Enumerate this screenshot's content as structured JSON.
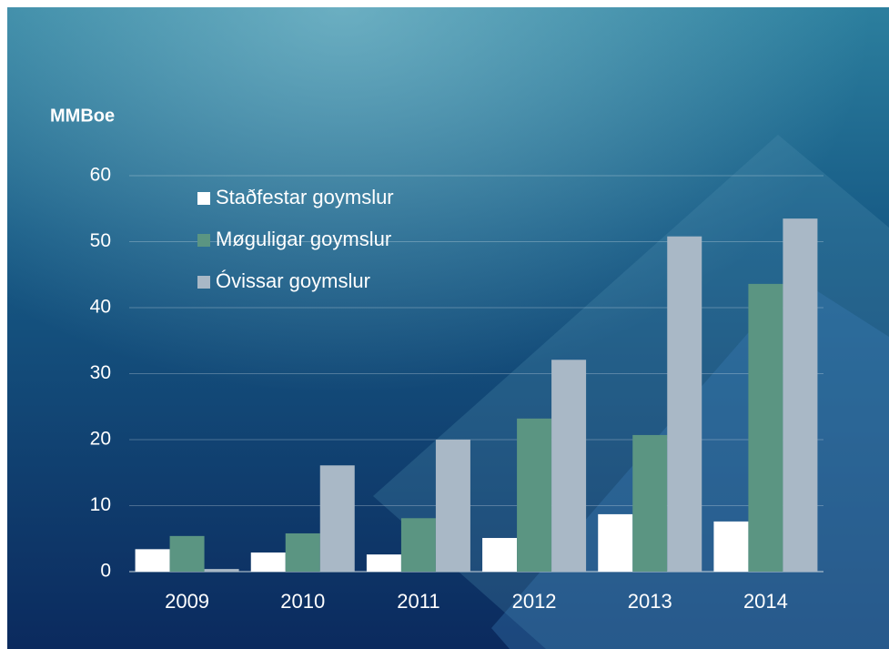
{
  "chart_data": {
    "type": "bar",
    "y_label": "MMBoe",
    "categories": [
      "2009",
      "2010",
      "2011",
      "2012",
      "2013",
      "2014"
    ],
    "series": [
      {
        "name": "Staðfestar goymslur",
        "color": "#ffffff",
        "values": [
          3.4,
          2.9,
          2.6,
          5.1,
          8.7,
          7.6
        ]
      },
      {
        "name": "Møguligar goymslur",
        "color": "#5b9582",
        "values": [
          5.4,
          5.8,
          8.1,
          23.2,
          20.7,
          43.6
        ]
      },
      {
        "name": "Óvissar goymslur",
        "color": "#a9b8c6",
        "values": [
          0.4,
          16.1,
          20,
          32.1,
          50.8,
          53.5
        ]
      }
    ],
    "ylim": [
      0,
      60
    ],
    "yticks": [
      0,
      10,
      20,
      30,
      40,
      50,
      60
    ],
    "grid": true,
    "legend": "top-left"
  }
}
